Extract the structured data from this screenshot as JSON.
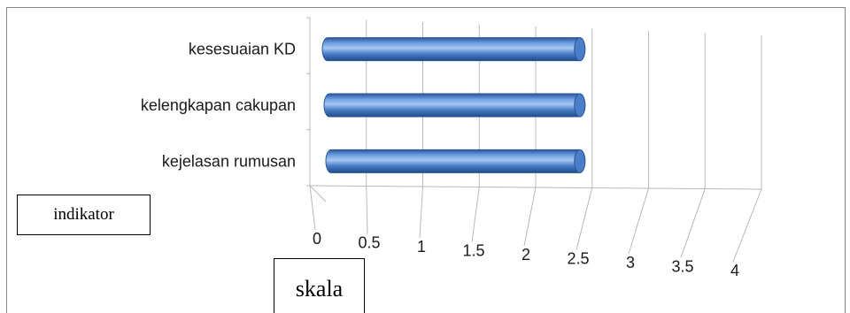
{
  "chart_data": {
    "type": "bar",
    "orientation": "horizontal",
    "style": "3d-cylinder",
    "categories": [
      "kejelasan rumusan",
      "kelengkapan cakupan",
      "kesesuaian KD"
    ],
    "values": [
      2.5,
      2.5,
      2.5
    ],
    "xlim": [
      0,
      4
    ],
    "xticks": [
      "0",
      "0.5",
      "1",
      "1.5",
      "2",
      "2.5",
      "3",
      "3.5",
      "4"
    ],
    "xlabel": "skala",
    "ylabel": "indikator",
    "grid": true,
    "legend": "none",
    "colors": {
      "bar_main": "#4a7ec9",
      "bar_dark": "#2a5595",
      "bar_light": "#9cc0ec",
      "grid": "#b8b8b8"
    }
  }
}
